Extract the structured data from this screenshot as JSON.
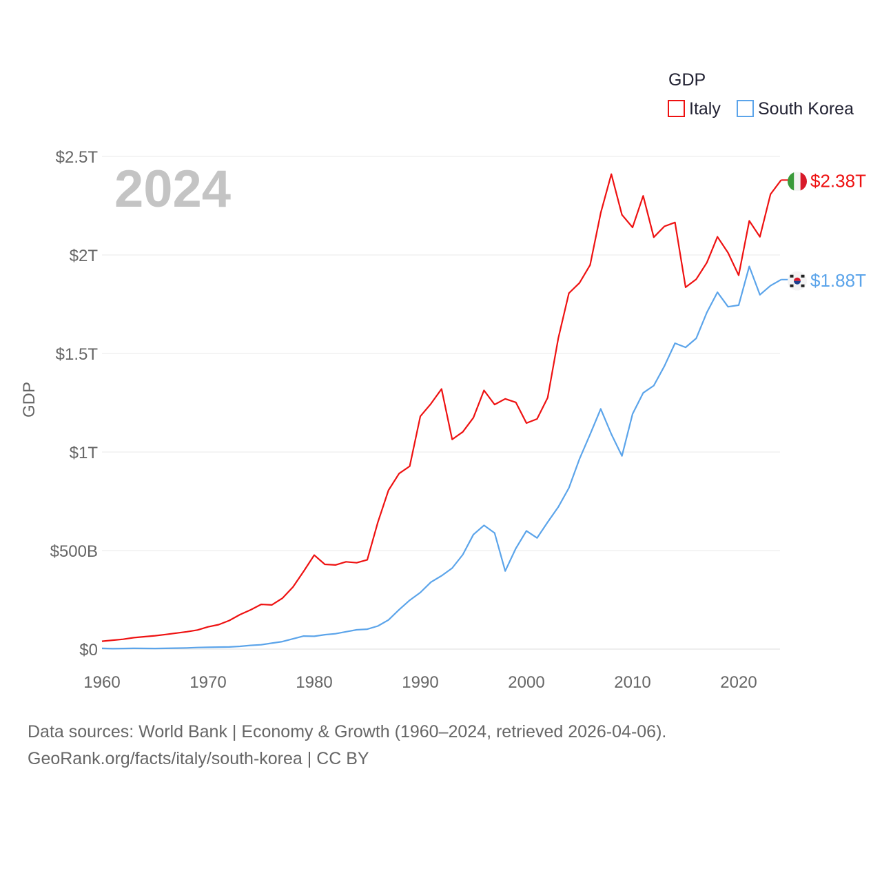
{
  "chart_data": {
    "type": "line",
    "title": "",
    "ylabel": "GDP",
    "xlabel": "",
    "year_label": "2024",
    "legend": {
      "title": "GDP",
      "placement": "top-right"
    },
    "xlim": [
      1960,
      2024
    ],
    "ylim": [
      0,
      2.5
    ],
    "y_unit": "trillion USD",
    "x_ticks": [
      1960,
      1970,
      1980,
      1990,
      2000,
      2010,
      2020
    ],
    "x_tick_labels": [
      "1960",
      "1970",
      "1980",
      "1990",
      "2000",
      "2010",
      "2020"
    ],
    "y_ticks": [
      0,
      0.5,
      1,
      1.5,
      2,
      2.5
    ],
    "y_tick_labels": [
      "$0",
      "$500B",
      "$1T",
      "$1.5T",
      "$2T",
      "$2.5T"
    ],
    "grid": true,
    "x": [
      1960,
      1961,
      1962,
      1963,
      1964,
      1965,
      1966,
      1967,
      1968,
      1969,
      1970,
      1971,
      1972,
      1973,
      1974,
      1975,
      1976,
      1977,
      1978,
      1979,
      1980,
      1981,
      1982,
      1983,
      1984,
      1985,
      1986,
      1987,
      1988,
      1989,
      1990,
      1991,
      1992,
      1993,
      1994,
      1995,
      1996,
      1997,
      1998,
      1999,
      2000,
      2001,
      2002,
      2003,
      2004,
      2005,
      2006,
      2007,
      2008,
      2009,
      2010,
      2011,
      2012,
      2013,
      2014,
      2015,
      2016,
      2017,
      2018,
      2019,
      2020,
      2021,
      2022,
      2023,
      2024
    ],
    "series": [
      {
        "name": "Italy",
        "color": "#ee1111",
        "end_label": "$2.38T",
        "values": [
          0.04,
          0.045,
          0.05,
          0.058,
          0.063,
          0.068,
          0.074,
          0.081,
          0.088,
          0.097,
          0.113,
          0.124,
          0.145,
          0.175,
          0.199,
          0.227,
          0.224,
          0.258,
          0.315,
          0.394,
          0.477,
          0.43,
          0.427,
          0.443,
          0.438,
          0.453,
          0.644,
          0.806,
          0.891,
          0.928,
          1.181,
          1.245,
          1.32,
          1.064,
          1.102,
          1.174,
          1.313,
          1.241,
          1.27,
          1.252,
          1.147,
          1.168,
          1.276,
          1.577,
          1.806,
          1.858,
          1.949,
          2.213,
          2.41,
          2.204,
          2.14,
          2.3,
          2.09,
          2.145,
          2.165,
          1.836,
          1.877,
          1.961,
          2.092,
          2.011,
          1.897,
          2.173,
          2.092,
          2.308,
          2.38
        ]
      },
      {
        "name": "South Korea",
        "color": "#5ba4ea",
        "end_label": "$1.88T",
        "values": [
          0.004,
          0.002,
          0.003,
          0.004,
          0.0035,
          0.003,
          0.004,
          0.005,
          0.006,
          0.008,
          0.009,
          0.01,
          0.011,
          0.014,
          0.019,
          0.022,
          0.03,
          0.038,
          0.052,
          0.066,
          0.065,
          0.073,
          0.078,
          0.088,
          0.098,
          0.101,
          0.117,
          0.148,
          0.2,
          0.248,
          0.287,
          0.34,
          0.372,
          0.411,
          0.479,
          0.581,
          0.628,
          0.589,
          0.396,
          0.511,
          0.6,
          0.564,
          0.644,
          0.721,
          0.818,
          0.965,
          1.09,
          1.219,
          1.091,
          0.98,
          1.193,
          1.3,
          1.337,
          1.436,
          1.552,
          1.531,
          1.577,
          1.708,
          1.811,
          1.737,
          1.745,
          1.942,
          1.798,
          1.844,
          1.875
        ]
      }
    ]
  },
  "footer": {
    "line1": "Data sources: World Bank | Economy & Growth (1960–2024, retrieved 2026-04-06).",
    "line2": "GeoRank.org/facts/italy/south-korea | CC BY"
  }
}
